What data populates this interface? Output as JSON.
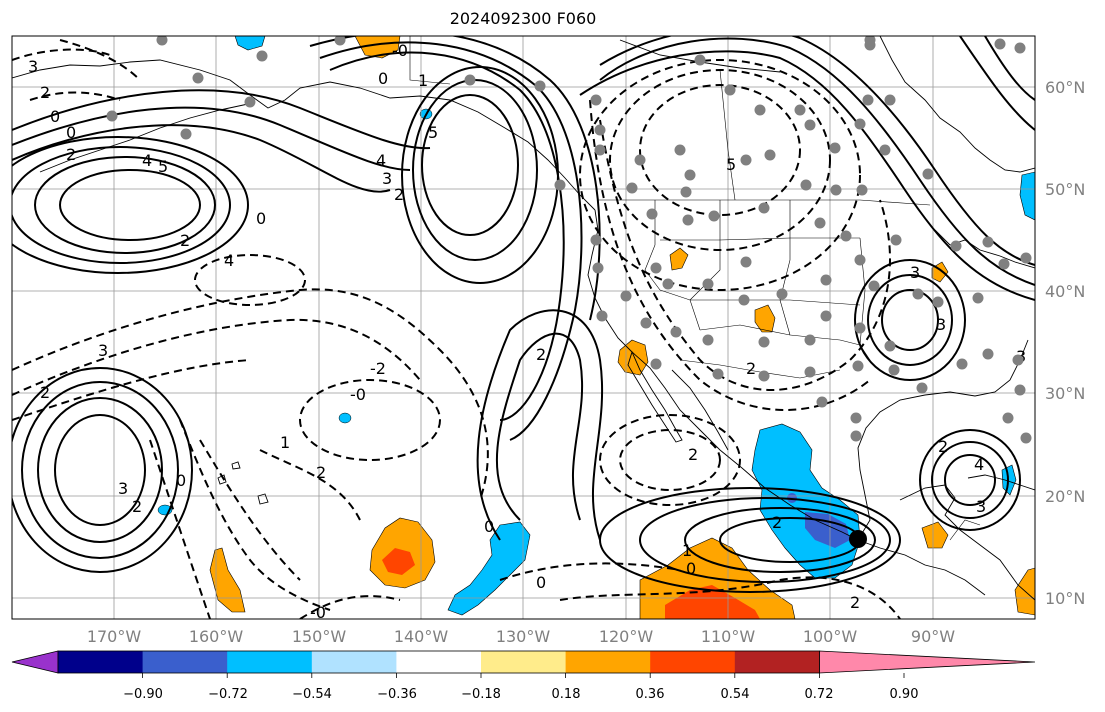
{
  "title": "2024092300 F060",
  "map": {
    "lon_range": [
      -180,
      -80
    ],
    "lat_range": [
      8,
      65
    ],
    "lat_labels": [
      "60°N",
      "50°N",
      "40°N",
      "30°N",
      "20°N",
      "10°N"
    ],
    "lon_labels": [
      "170°W",
      "160°W",
      "150°W",
      "140°W",
      "130°W",
      "120°W",
      "110°W",
      "100°W",
      "90°W"
    ],
    "contour_labels": [
      "3",
      "2",
      "0",
      "0",
      "2",
      "4",
      "5",
      "-0",
      "0",
      "1",
      "5",
      "4",
      "3",
      "2",
      "0",
      "4",
      "2",
      "3",
      "2",
      "-0",
      "-2",
      "2",
      "0",
      "1",
      "2",
      "3",
      "2",
      "0",
      "-0",
      "0",
      "2",
      "2",
      "1",
      "0",
      "2",
      "3",
      "2",
      "2",
      "4",
      "3",
      "3",
      "3",
      "5"
    ],
    "marker_color": "#000000",
    "station_color": "#808080"
  },
  "colorbar": {
    "tick_labels": [
      "−0.90",
      "−0.72",
      "−0.54",
      "−0.36",
      "−0.18",
      "0.18",
      "0.36",
      "0.54",
      "0.72",
      "0.90"
    ],
    "colors": [
      "#9932cc",
      "#00008b",
      "#3a5fcd",
      "#00bfff",
      "#b0e2ff",
      "#ffffff",
      "#ffec8b",
      "#ffa500",
      "#ff4500",
      "#b22222",
      "#ff88aa"
    ]
  }
}
